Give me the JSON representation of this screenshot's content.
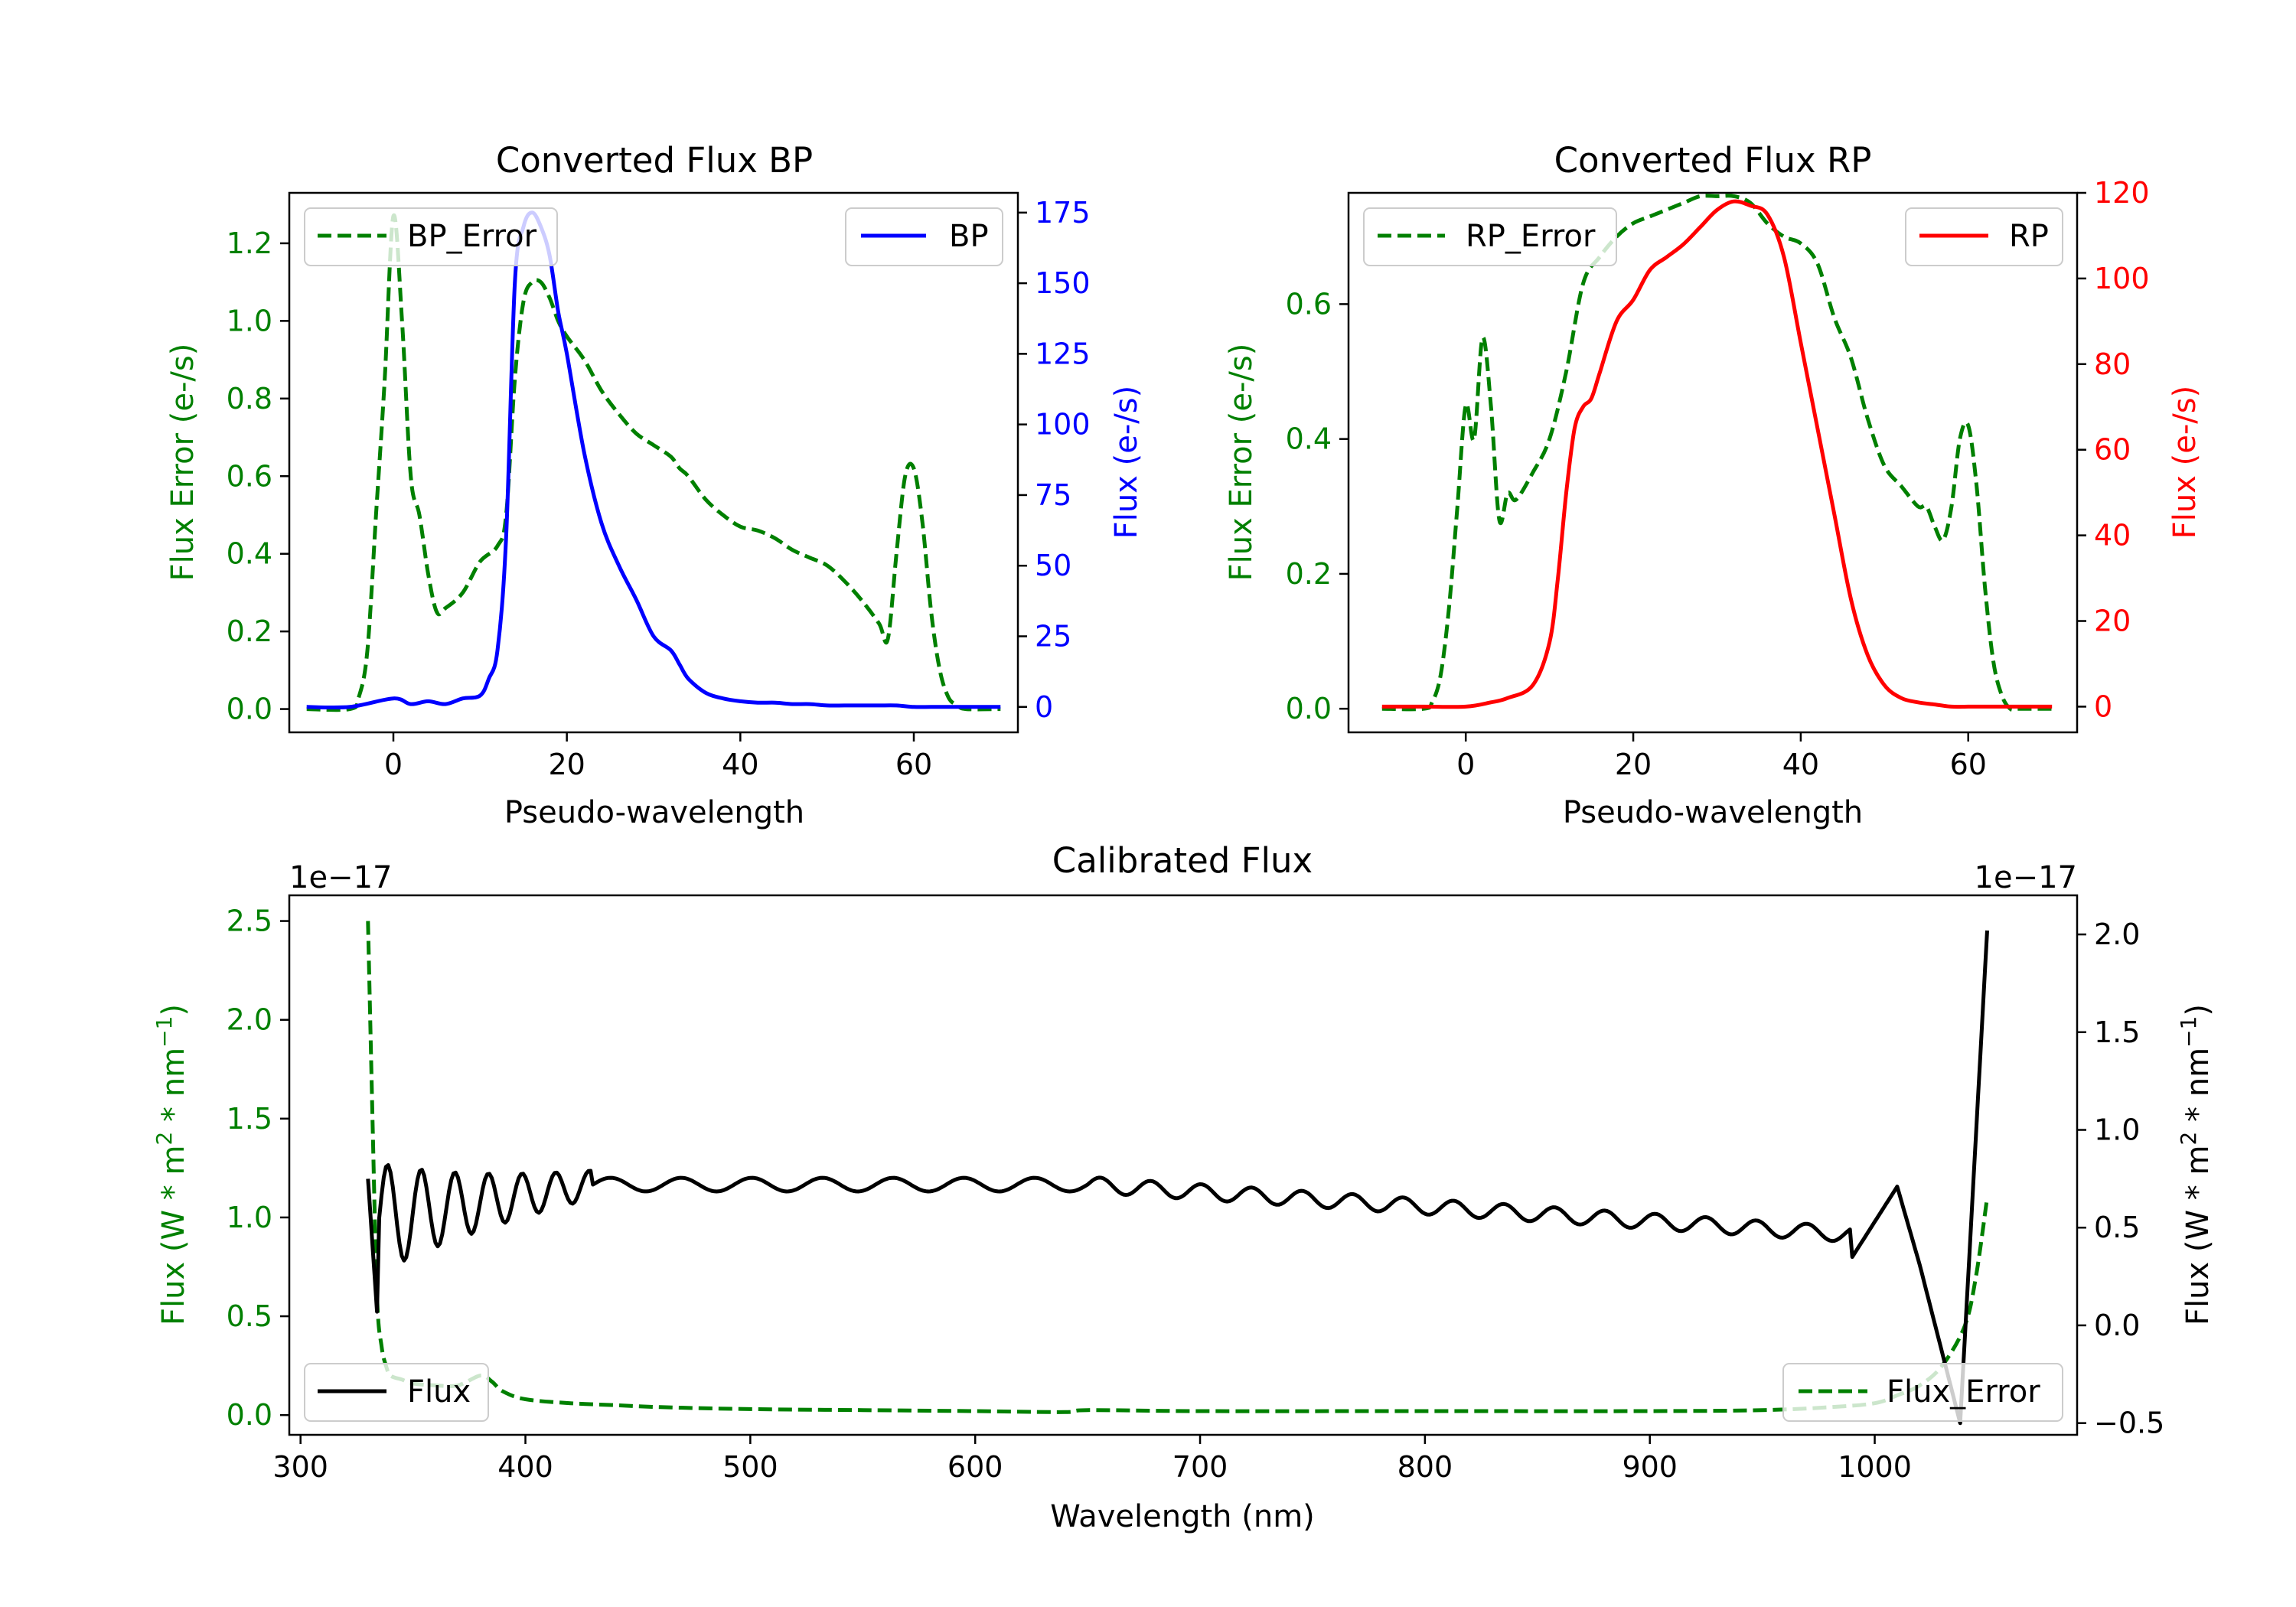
{
  "figure": {
    "note": "Gaia XP spectra figure with three panels"
  },
  "chart_data": [
    {
      "id": "bp",
      "type": "line",
      "title": "Converted Flux BP",
      "xlabel": "Pseudo-wavelength",
      "ylabel_left": "Flux Error (e-/s)",
      "ylabel_right": "Flux (e-/s)",
      "xlim": [
        -12,
        72
      ],
      "ylim_left": [
        -0.06,
        1.33
      ],
      "ylim_right": [
        -9,
        182
      ],
      "xticks": [
        0,
        20,
        40,
        60
      ],
      "yticks_left": [
        "0.0",
        "0.2",
        "0.4",
        "0.6",
        "0.8",
        "1.0",
        "1.2"
      ],
      "yticks_right": [
        "0",
        "25",
        "50",
        "75",
        "100",
        "125",
        "150",
        "175"
      ],
      "colors": {
        "error": "#008000",
        "flux": "#0000ff"
      },
      "legend": [
        {
          "label": "BP_Error",
          "style": "dashed",
          "color": "#008000",
          "placement": "upper-left"
        },
        {
          "label": "BP",
          "style": "solid",
          "color": "#0000ff",
          "placement": "upper-right"
        }
      ],
      "series": [
        {
          "name": "BP_Error",
          "axis": "left",
          "style": "dashed",
          "color": "#008000",
          "x": [
            -10,
            -5,
            -4,
            -3,
            -2,
            -1,
            0,
            1,
            2,
            3,
            4,
            5,
            6,
            8,
            10,
            12,
            13,
            14,
            15,
            16,
            17,
            18,
            19,
            20,
            22,
            24,
            26,
            28,
            30,
            32,
            33,
            34,
            36,
            38,
            40,
            42,
            44,
            46,
            48,
            50,
            52,
            54,
            56,
            57,
            58,
            59,
            60,
            61,
            62,
            63,
            64,
            65,
            66,
            70
          ],
          "y": [
            0.0,
            0.0,
            0.03,
            0.15,
            0.5,
            0.85,
            1.27,
            1.0,
            0.6,
            0.5,
            0.35,
            0.25,
            0.26,
            0.3,
            0.38,
            0.42,
            0.5,
            0.85,
            1.05,
            1.1,
            1.1,
            1.06,
            1.0,
            0.96,
            0.9,
            0.82,
            0.76,
            0.71,
            0.68,
            0.65,
            0.62,
            0.6,
            0.54,
            0.5,
            0.47,
            0.46,
            0.44,
            0.41,
            0.39,
            0.37,
            0.33,
            0.28,
            0.22,
            0.18,
            0.4,
            0.6,
            0.62,
            0.48,
            0.25,
            0.1,
            0.03,
            0.01,
            0.0,
            0.0
          ]
        },
        {
          "name": "BP",
          "axis": "right",
          "style": "solid",
          "color": "#0000ff",
          "x": [
            -10,
            -5,
            0,
            2,
            4,
            6,
            8,
            10,
            11,
            12,
            13,
            14,
            15,
            16,
            17,
            18,
            19,
            20,
            22,
            24,
            26,
            28,
            30,
            32,
            33,
            34,
            36,
            38,
            40,
            42,
            44,
            46,
            48,
            50,
            52,
            54,
            56,
            58,
            60,
            62,
            64,
            66,
            68,
            70
          ],
          "y": [
            0,
            0,
            3,
            1,
            2,
            1,
            3,
            4,
            10,
            20,
            60,
            150,
            170,
            175,
            170,
            160,
            140,
            125,
            90,
            65,
            50,
            38,
            25,
            20,
            15,
            10,
            5,
            3,
            2,
            1.5,
            1.5,
            1,
            1,
            0.5,
            0.5,
            0.5,
            0.5,
            0.5,
            0,
            0,
            0,
            0,
            0,
            0
          ]
        }
      ]
    },
    {
      "id": "rp",
      "type": "line",
      "title": "Converted Flux RP",
      "xlabel": "Pseudo-wavelength",
      "ylabel_left": "Flux Error (e-/s)",
      "ylabel_right": "Flux (e-/s)",
      "xlim": [
        -14,
        73
      ],
      "ylim_left": [
        -0.035,
        0.765
      ],
      "ylim_right": [
        -6,
        120
      ],
      "xticks": [
        0,
        20,
        40,
        60
      ],
      "yticks_left": [
        "0.0",
        "0.2",
        "0.4",
        "0.6"
      ],
      "yticks_right": [
        "0",
        "20",
        "40",
        "60",
        "80",
        "100",
        "120"
      ],
      "colors": {
        "error": "#008000",
        "flux": "#ff0000"
      },
      "legend": [
        {
          "label": "RP_Error",
          "style": "dashed",
          "color": "#008000",
          "placement": "upper-left"
        },
        {
          "label": "RP",
          "style": "solid",
          "color": "#ff0000",
          "placement": "upper-right"
        }
      ],
      "series": [
        {
          "name": "RP_Error",
          "axis": "left",
          "style": "dashed",
          "color": "#008000",
          "x": [
            -10,
            -5,
            -4,
            -3,
            -2,
            -1,
            0,
            1,
            2,
            3,
            4,
            5,
            6,
            8,
            10,
            12,
            14,
            16,
            18,
            20,
            22,
            24,
            26,
            28,
            30,
            32,
            34,
            36,
            38,
            40,
            42,
            44,
            46,
            48,
            50,
            52,
            54,
            55,
            56,
            57,
            58,
            59,
            60,
            61,
            62,
            63,
            64,
            65,
            66,
            70
          ],
          "y": [
            0.0,
            0.0,
            0.01,
            0.05,
            0.15,
            0.3,
            0.45,
            0.4,
            0.55,
            0.45,
            0.28,
            0.32,
            0.31,
            0.35,
            0.4,
            0.5,
            0.63,
            0.67,
            0.7,
            0.72,
            0.73,
            0.74,
            0.75,
            0.76,
            0.76,
            0.76,
            0.75,
            0.72,
            0.7,
            0.69,
            0.66,
            0.58,
            0.52,
            0.43,
            0.36,
            0.33,
            0.3,
            0.3,
            0.27,
            0.25,
            0.3,
            0.4,
            0.42,
            0.33,
            0.18,
            0.07,
            0.02,
            0.0,
            0.0,
            0.0
          ]
        },
        {
          "name": "RP",
          "axis": "right",
          "style": "solid",
          "color": "#ff0000",
          "x": [
            -10,
            -5,
            0,
            3,
            5,
            8,
            10,
            11,
            12,
            13,
            14,
            15,
            16,
            18,
            20,
            22,
            24,
            26,
            28,
            30,
            32,
            34,
            36,
            38,
            40,
            42,
            44,
            46,
            48,
            50,
            52,
            54,
            56,
            58,
            60,
            62,
            66,
            70
          ],
          "y": [
            0,
            0,
            0,
            1,
            2,
            5,
            15,
            30,
            50,
            65,
            70,
            72,
            78,
            90,
            95,
            102,
            105,
            108,
            112,
            116,
            118,
            117,
            115,
            105,
            85,
            65,
            45,
            25,
            12,
            5,
            2,
            1,
            0.5,
            0,
            0,
            0,
            0,
            0
          ]
        }
      ]
    },
    {
      "id": "calibrated",
      "type": "line",
      "title": "Calibrated Flux",
      "xlabel": "Wavelength (nm)",
      "ylabel_left": "Flux (W * m",
      "ylabel_left_full": "Flux (W * m² * nm⁻¹)",
      "ylabel_right": "Flux (W * m",
      "offset_left": "1e−17",
      "offset_right": "1e−17",
      "xlim": [
        295,
        1090
      ],
      "ylim_left": [
        -0.1,
        2.63
      ],
      "ylim_right": [
        -0.56,
        2.2
      ],
      "xticks": [
        300,
        400,
        500,
        600,
        700,
        800,
        900,
        1000
      ],
      "yticks_left": [
        "0.0",
        "0.5",
        "1.0",
        "1.5",
        "2.0",
        "2.5"
      ],
      "yticks_right": [
        "−0.5",
        "0.0",
        "0.5",
        "1.0",
        "1.5",
        "2.0"
      ],
      "colors": {
        "error": "#008000",
        "flux": "#000000"
      },
      "legend": [
        {
          "label": "Flux",
          "style": "solid",
          "color": "#000000",
          "placement": "lower-left"
        },
        {
          "label": "Flux_Error",
          "style": "dashed",
          "color": "#008000",
          "placement": "lower-right"
        }
      ],
      "series": [
        {
          "name": "Flux_Error",
          "axis": "left",
          "style": "dashed",
          "color": "#008000",
          "x": [
            330,
            332,
            334,
            336,
            338,
            340,
            345,
            350,
            360,
            370,
            380,
            385,
            390,
            400,
            420,
            440,
            460,
            500,
            550,
            600,
            640,
            650,
            700,
            800,
            900,
            950,
            980,
            1000,
            1010,
            1020,
            1030,
            1040,
            1045,
            1050
          ],
          "y": [
            2.5,
            1.5,
            0.6,
            0.35,
            0.25,
            0.2,
            0.18,
            0.16,
            0.15,
            0.15,
            0.2,
            0.17,
            0.12,
            0.08,
            0.06,
            0.05,
            0.04,
            0.03,
            0.025,
            0.02,
            0.015,
            0.025,
            0.02,
            0.02,
            0.02,
            0.025,
            0.04,
            0.06,
            0.1,
            0.15,
            0.25,
            0.45,
            0.7,
            1.1
          ]
        }
      ]
    }
  ]
}
